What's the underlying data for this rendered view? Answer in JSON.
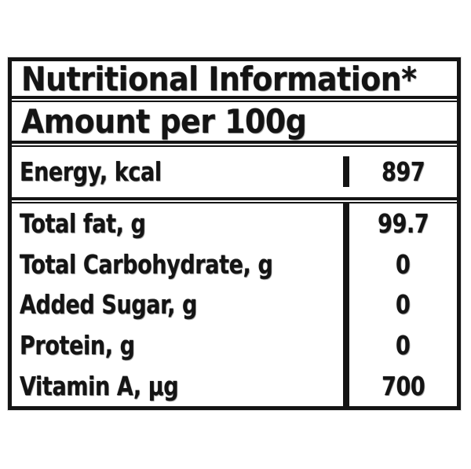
{
  "label": {
    "title": "Nutritional Information*",
    "amount_header": "Amount per 100g",
    "rows": [
      {
        "name": "Energy, kcal",
        "value": "897"
      },
      {
        "name": "Total fat, g",
        "value": "99.7"
      },
      {
        "name": "Total Carbohydrate, g",
        "value": "0"
      },
      {
        "name": "Added Sugar, g",
        "value": "0"
      },
      {
        "name": "Protein, g",
        "value": "0"
      },
      {
        "name": "Vitamin A, µg",
        "value": "700"
      }
    ]
  },
  "colors": {
    "ink": "#141414",
    "background": "#ffffff"
  }
}
